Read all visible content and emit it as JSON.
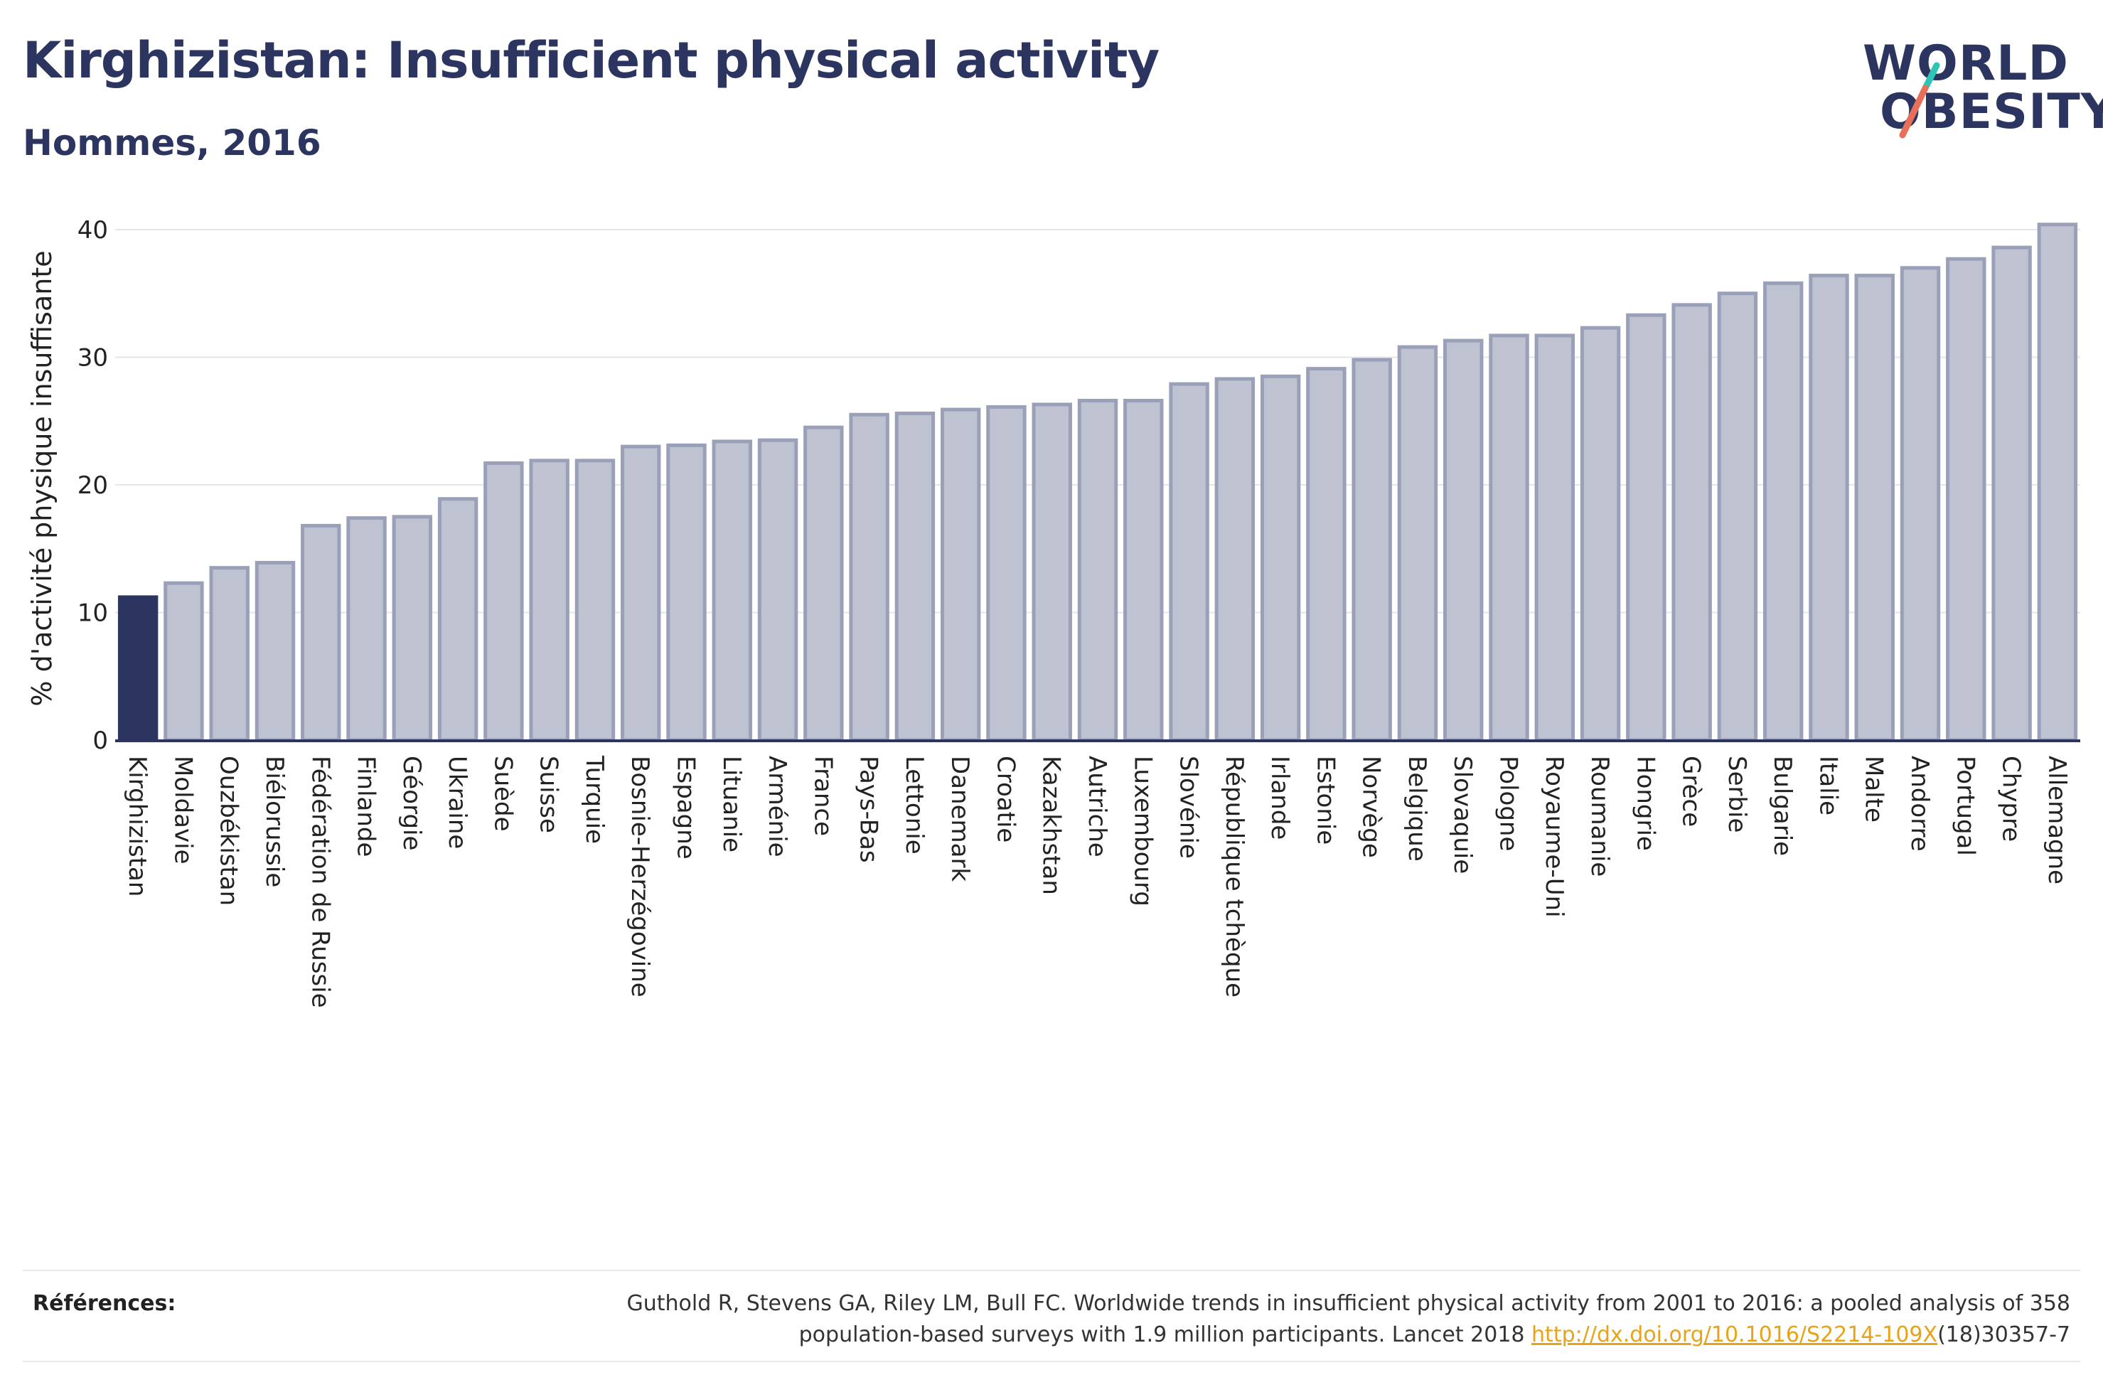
{
  "header": {
    "title": "Kirghizistan: Insufficient physical activity",
    "subtitle": "Hommes, 2016"
  },
  "logo": {
    "line1": "WORLD",
    "line2": "OBESITY",
    "slash_color_top": "#2ec4b6",
    "slash_color_bottom": "#e8705a"
  },
  "colors": {
    "highlight_bar": "#2b3560",
    "bar_fill": "#bfc3d1",
    "bar_stroke": "#9aa0b8",
    "text": "#2b3560",
    "link": "#e8a317"
  },
  "chart_data": {
    "type": "bar",
    "ylabel": "% d'activité physique insuffisante",
    "ylim": [
      0,
      41
    ],
    "yticks": [
      0,
      10,
      20,
      30,
      40
    ],
    "grid": true,
    "highlight": "Kirghizistan",
    "categories": [
      "Kirghizistan",
      "Moldavie",
      "Ouzbékistan",
      "Biélorussie",
      "Fédération de Russie",
      "Finlande",
      "Géorgie",
      "Ukraine",
      "Suède",
      "Suisse",
      "Turquie",
      "Bosnie-Herzégovine",
      "Espagne",
      "Lituanie",
      "Arménie",
      "France",
      "Pays-Bas",
      "Lettonie",
      "Danemark",
      "Croatie",
      "Kazakhstan",
      "Autriche",
      "Luxembourg",
      "Slovénie",
      "République tchèque",
      "Irlande",
      "Estonie",
      "Norvège",
      "Belgique",
      "Slovaquie",
      "Pologne",
      "Royaume-Uni",
      "Roumanie",
      "Hongrie",
      "Grèce",
      "Serbie",
      "Bulgarie",
      "Italie",
      "Malte",
      "Andorre",
      "Portugal",
      "Chypre",
      "Allemagne"
    ],
    "values": [
      11.2,
      12.3,
      13.5,
      13.9,
      16.8,
      17.4,
      17.5,
      18.9,
      21.7,
      21.9,
      21.9,
      23.0,
      23.1,
      23.4,
      23.5,
      24.5,
      25.5,
      25.6,
      25.9,
      26.1,
      26.3,
      26.6,
      26.6,
      27.9,
      28.3,
      28.5,
      29.1,
      29.8,
      30.8,
      31.3,
      31.7,
      31.7,
      32.3,
      33.3,
      34.1,
      35.0,
      35.8,
      36.4,
      36.4,
      37.0,
      37.7,
      38.6,
      40.4
    ]
  },
  "references": {
    "label": "Références:",
    "text_line1": "Guthold R, Stevens GA, Riley LM, Bull FC. Worldwide trends in insufficient physical activity from 2001 to 2016: a pooled analysis of 358",
    "text_line2_pre": "population-based surveys with 1.9 million participants. Lancet 2018 ",
    "link": "http://dx.doi.org/10.1016/S2214-109X",
    "text_line2_post": "(18)30357-7"
  }
}
